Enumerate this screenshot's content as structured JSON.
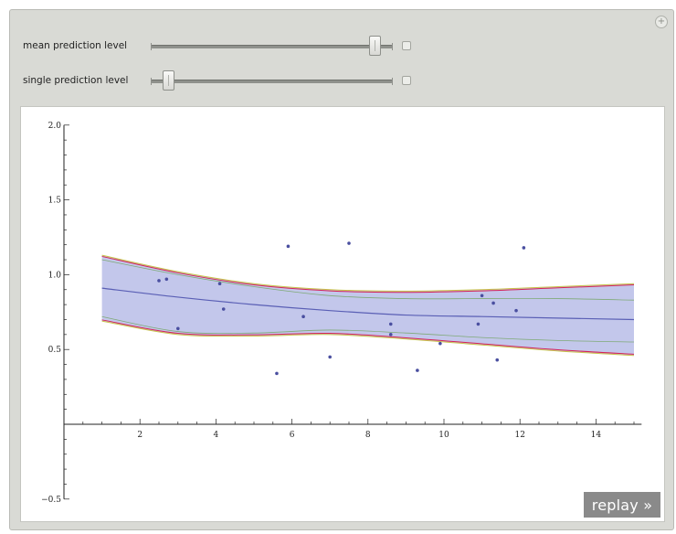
{
  "controls": {
    "mean_label": "mean prediction level",
    "single_label": "single prediction level",
    "mean_value": 0.95,
    "single_value": 0.05
  },
  "replay_label": "replay »",
  "colors": {
    "band_fill": "#b8bde8",
    "center_line": "#5a5fb5",
    "outer_red": "#d4245a",
    "outer_yellow": "#c8c24a",
    "outer_green": "#6ea35a",
    "points": "#4a4fa0"
  },
  "chart_data": {
    "type": "scatter",
    "xlim": [
      0,
      15
    ],
    "ylim": [
      -0.5,
      2.0
    ],
    "x_ticks": [
      "2",
      "4",
      "6",
      "8",
      "10",
      "12",
      "14"
    ],
    "x_tick_values": [
      2,
      4,
      6,
      8,
      10,
      12,
      14
    ],
    "y_ticks": [
      "−0.5",
      "0.5",
      "1.0",
      "1.5",
      "2.0"
    ],
    "y_tick_values": [
      -0.5,
      0.5,
      1.0,
      1.5,
      2.0
    ],
    "points": [
      [
        2.5,
        0.96
      ],
      [
        2.7,
        0.97
      ],
      [
        3.0,
        0.64
      ],
      [
        4.1,
        0.94
      ],
      [
        4.2,
        0.77
      ],
      [
        5.6,
        0.34
      ],
      [
        5.9,
        1.19
      ],
      [
        6.3,
        0.72
      ],
      [
        7.0,
        0.45
      ],
      [
        7.5,
        1.21
      ],
      [
        8.6,
        0.67
      ],
      [
        8.6,
        0.6
      ],
      [
        9.3,
        0.36
      ],
      [
        9.9,
        0.54
      ],
      [
        10.9,
        0.67
      ],
      [
        11.0,
        0.86
      ],
      [
        11.3,
        0.81
      ],
      [
        11.4,
        0.43
      ],
      [
        11.9,
        0.76
      ],
      [
        12.1,
        1.18
      ]
    ],
    "band": {
      "x": [
        1,
        3,
        5,
        7,
        9,
        11,
        13,
        15
      ],
      "center": [
        0.91,
        0.85,
        0.8,
        0.76,
        0.73,
        0.72,
        0.71,
        0.7
      ],
      "mean_upper": [
        1.13,
        1.02,
        0.94,
        0.9,
        0.89,
        0.9,
        0.92,
        0.94
      ],
      "mean_lower": [
        0.69,
        0.6,
        0.59,
        0.6,
        0.57,
        0.53,
        0.49,
        0.46
      ],
      "single_upper": [
        1.1,
        1.0,
        0.92,
        0.86,
        0.84,
        0.84,
        0.84,
        0.83
      ],
      "single_lower": [
        0.72,
        0.62,
        0.61,
        0.63,
        0.61,
        0.58,
        0.56,
        0.55
      ]
    }
  }
}
